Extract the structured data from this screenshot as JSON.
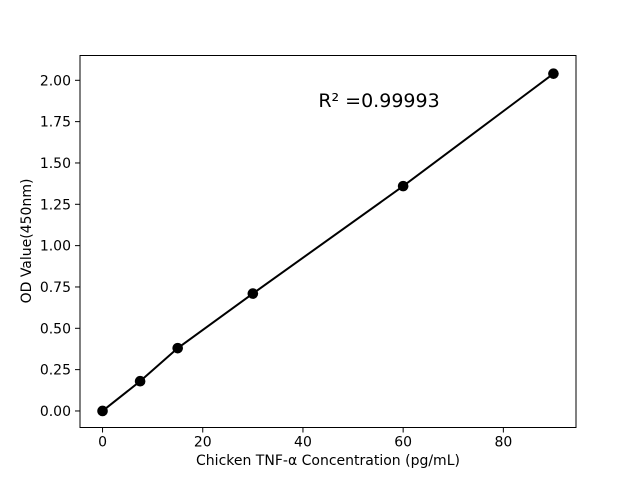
{
  "figure": {
    "background_color": "#ffffff",
    "foreground_color": "#000000"
  },
  "chart_data": {
    "type": "scatter",
    "title": "",
    "xlabel": "Chicken TNF-α Concentration (pg/mL)",
    "ylabel": "OD Value(450nm)",
    "annotation": "R² =0.99993",
    "x": [
      0,
      7.5,
      15,
      30,
      60,
      90
    ],
    "y": [
      0.0,
      0.18,
      0.38,
      0.71,
      1.36,
      2.04
    ],
    "series": [
      {
        "name": "standard curve",
        "marker": "filled-circle",
        "line": "solid",
        "color": "#000000",
        "points": [
          {
            "x": 0,
            "y": 0.0
          },
          {
            "x": 7.5,
            "y": 0.18
          },
          {
            "x": 15,
            "y": 0.38
          },
          {
            "x": 30,
            "y": 0.71
          },
          {
            "x": 60,
            "y": 1.36
          },
          {
            "x": 90,
            "y": 2.04
          }
        ]
      }
    ],
    "xlim": [
      -4.5,
      94.5
    ],
    "ylim": [
      -0.1,
      2.15
    ],
    "xticks": [
      0,
      20,
      40,
      60,
      80
    ],
    "xtick_labels": [
      "0",
      "20",
      "40",
      "60",
      "80"
    ],
    "yticks": [
      0.0,
      0.25,
      0.5,
      0.75,
      1.0,
      1.25,
      1.5,
      1.75,
      2.0
    ],
    "ytick_labels": [
      "0.00",
      "0.25",
      "0.50",
      "0.75",
      "1.00",
      "1.25",
      "1.50",
      "1.75",
      "2.00"
    ],
    "grid": false,
    "legend": "none",
    "line_color": "#000000",
    "marker_color": "#000000"
  }
}
